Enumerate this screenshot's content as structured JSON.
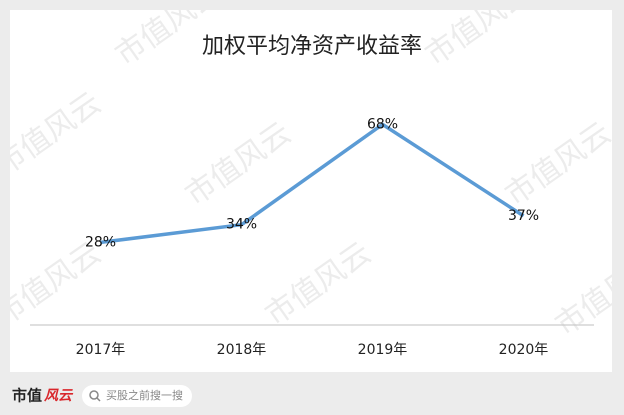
{
  "chart_data": {
    "type": "line",
    "title": "加权平均净资产收益率",
    "categories": [
      "2017年",
      "2018年",
      "2019年",
      "2020年"
    ],
    "series": [
      {
        "name": "加权平均净资产收益率",
        "color": "#5b9bd5",
        "values": [
          28,
          34,
          68,
          37
        ],
        "value_labels": [
          "28%",
          "34%",
          "68%",
          "37%"
        ]
      }
    ],
    "ylim": [
      0,
      80
    ]
  },
  "watermark": "市值风云",
  "footer": {
    "brand": "市值",
    "brand_mark": "风云",
    "search": "买股之前搜一搜"
  }
}
